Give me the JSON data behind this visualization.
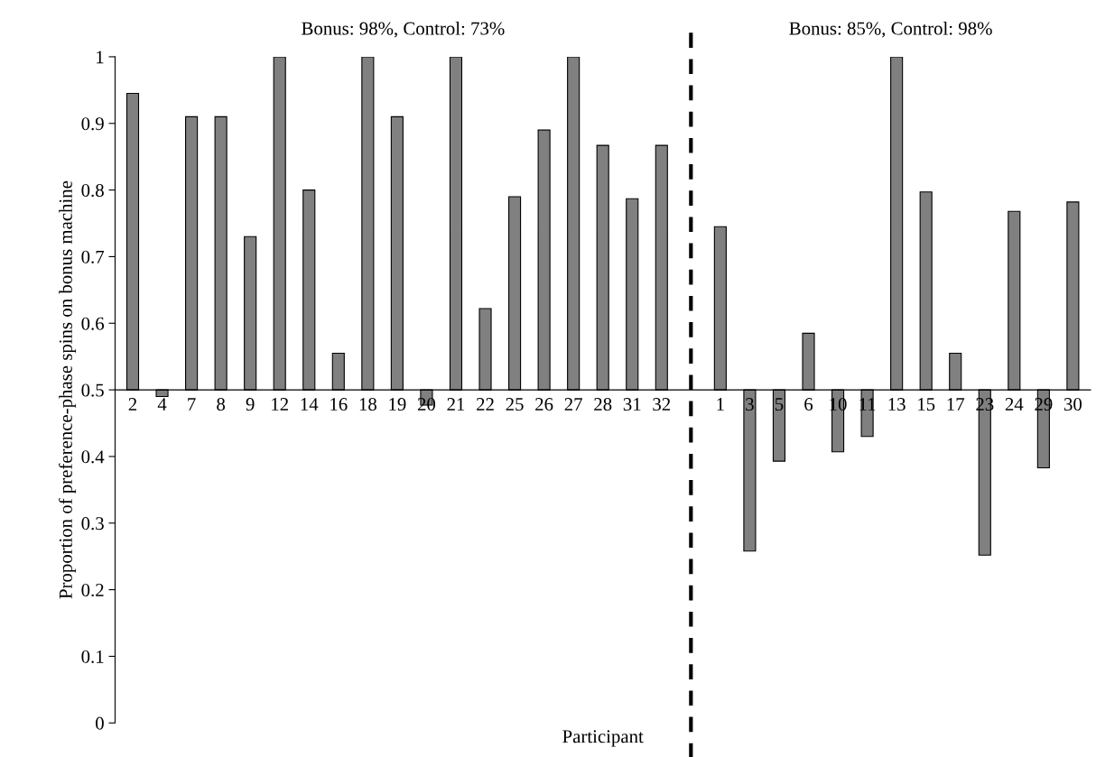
{
  "chart_data": {
    "type": "bar",
    "ylabel": "Proportion of preference-phase spins on bonus machine",
    "xlabel": "Participant",
    "annotations": [
      "Bonus: 98%, Control: 73%",
      "Bonus: 85%, Control: 98%"
    ],
    "categories": [
      "2",
      "4",
      "7",
      "8",
      "9",
      "12",
      "14",
      "16",
      "18",
      "19",
      "20",
      "21",
      "22",
      "25",
      "26",
      "27",
      "28",
      "31",
      "32",
      null,
      "1",
      "3",
      "5",
      "6",
      "10",
      "11",
      "13",
      "15",
      "17",
      "23",
      "24",
      "29",
      "30"
    ],
    "base": [
      0.5,
      0.5,
      0.5,
      0.5,
      0.5,
      0.5,
      0.5,
      0.5,
      0.5,
      0.5,
      0.5,
      0.5,
      0.5,
      0.5,
      0.5,
      0.5,
      0.5,
      0.5,
      0.5,
      null,
      0.5,
      0.5,
      0.5,
      0.5,
      0.5,
      0.5,
      0.5,
      0.5,
      0.5,
      0.5,
      0.5,
      0.5,
      0.5
    ],
    "values": [
      0.445,
      -0.01,
      0.41,
      0.41,
      0.23,
      0.5,
      0.3,
      0.055,
      0.5,
      0.41,
      -0.023,
      0.5,
      0.122,
      0.29,
      0.39,
      0.5,
      0.367,
      0.287,
      0.367,
      null,
      0.245,
      -0.242,
      -0.107,
      0.085,
      -0.093,
      -0.07,
      0.5,
      0.297,
      0.055,
      -0.248,
      0.268,
      -0.117,
      0.282
    ],
    "color": "#808080",
    "ylim": [
      0,
      1
    ],
    "yticks": [
      0,
      0.1,
      0.2,
      0.3,
      0.4,
      0.5,
      0.6,
      0.7,
      0.8,
      0.9,
      1
    ],
    "legend": false
  }
}
